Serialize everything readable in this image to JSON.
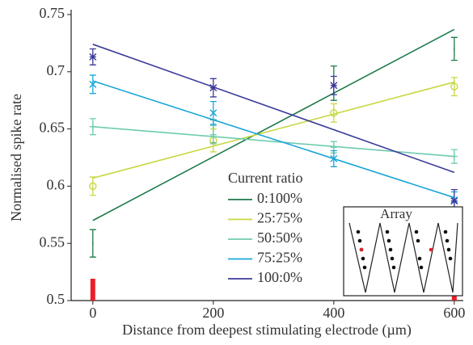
{
  "chart_data": {
    "type": "scatter",
    "x_label": "Distance from deepest stimulating electrode (µm)",
    "y_label": "Normalised spike rate",
    "x": [
      0,
      200,
      400,
      600
    ],
    "xlim": [
      -36,
      615
    ],
    "ylim": [
      0.5,
      0.75
    ],
    "xticks": [
      0,
      200,
      400,
      600
    ],
    "yticks": [
      0.5,
      0.55,
      0.6,
      0.65,
      0.7,
      0.75
    ],
    "fit_x": [
      0,
      600
    ],
    "legend_title": "Current ratio",
    "legend_position": "lower center",
    "inset_title": "Array",
    "electrode_x": [
      0,
      600
    ],
    "electrode_color": "#e8202a",
    "series": [
      {
        "name": "0:100%",
        "color": "#1e7a4a",
        "marker": "none",
        "values": [
          0.55,
          0.648,
          0.69,
          0.72
        ],
        "errors": [
          0.012,
          0.01,
          0.015,
          0.01
        ],
        "fit": [
          0.57,
          0.737
        ]
      },
      {
        "name": "25:75%",
        "color": "#c8d840",
        "marker": "circle",
        "values": [
          0.6,
          0.64,
          0.664,
          0.687
        ],
        "errors": [
          0.008,
          0.01,
          0.008,
          0.008
        ],
        "fit": [
          0.607,
          0.691
        ]
      },
      {
        "name": "50:50%",
        "color": "#6fcbb0",
        "marker": "plus",
        "values": [
          0.652,
          0.645,
          0.634,
          0.626
        ],
        "errors": [
          0.007,
          0.008,
          0.005,
          0.006
        ],
        "fit": [
          0.652,
          0.626
        ]
      },
      {
        "name": "75:25%",
        "color": "#1ba6d8",
        "marker": "x",
        "values": [
          0.689,
          0.664,
          0.624,
          0.588
        ],
        "errors": [
          0.008,
          0.01,
          0.007,
          0.007
        ],
        "fit": [
          0.692,
          0.59
        ]
      },
      {
        "name": "100:0%",
        "color": "#3a3a9a",
        "marker": "star",
        "values": [
          0.713,
          0.686,
          0.688,
          0.587
        ],
        "errors": [
          0.007,
          0.008,
          0.008,
          0.01
        ],
        "fit": [
          0.724,
          0.612
        ]
      }
    ]
  }
}
